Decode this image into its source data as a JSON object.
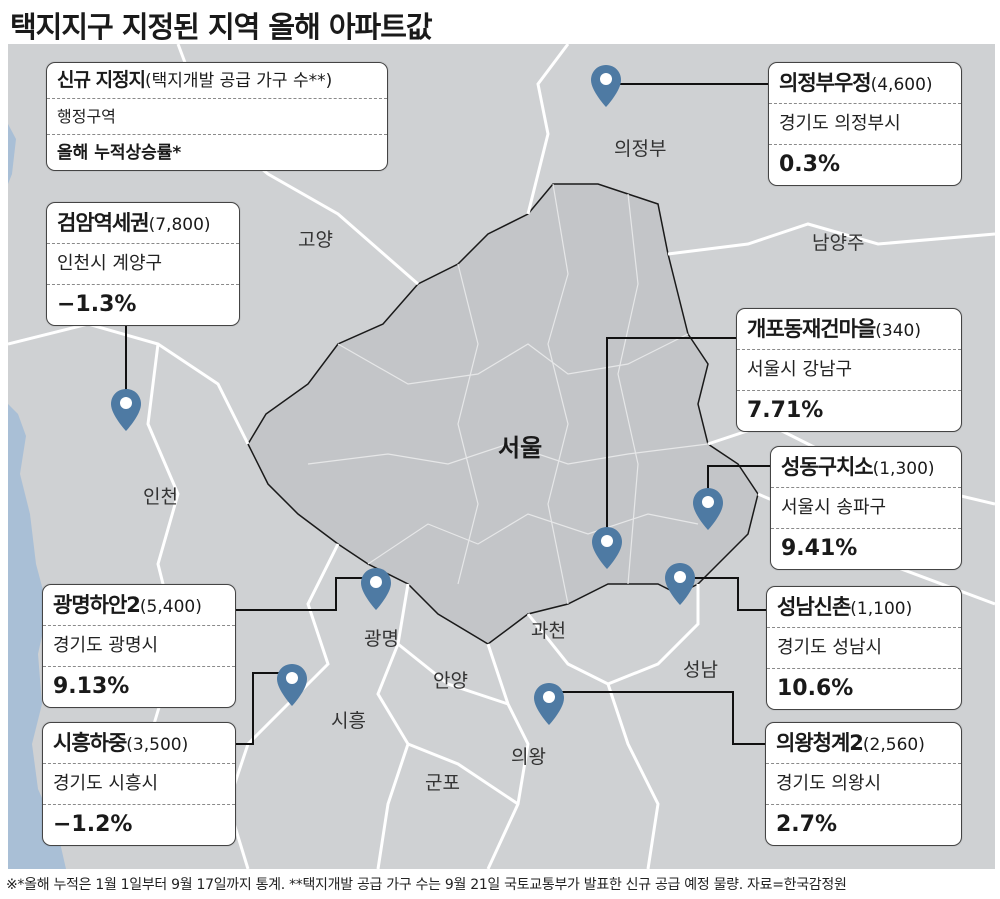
{
  "title": "택지지구 지정된 지역 올해 아파트값",
  "colors": {
    "map_land": "#cfd1d3",
    "seoul_fill": "#c3c5c8",
    "sea": "#a9bfd6",
    "border": "#ffffff",
    "pin": "#4e7aa3",
    "line": "#111111"
  },
  "legend": {
    "name": "신규 지정지",
    "count": "(택지개발 공급 가구 수**)",
    "district": "행정구역",
    "rate": "올해 누적상승률*"
  },
  "regions": {
    "uijeongbu": "의정부",
    "goyang": "고양",
    "namyangju": "남양주",
    "incheon": "인천",
    "seoul": "서울",
    "gwangmyeong": "광명",
    "gwacheon": "과천",
    "seongnam": "성남",
    "anyang": "안양",
    "siheung": "시흥",
    "uiwang": "의왕",
    "gunpo": "군포"
  },
  "sites": [
    {
      "id": "uijeongbu",
      "name": "의정부우정",
      "count": "(4,600)",
      "district": "경기도 의정부시",
      "rate": "0.3%",
      "icon": "map-pin-icon"
    },
    {
      "id": "geomam",
      "name": "검암역세권",
      "count": "(7,800)",
      "district": "인천시 계양구",
      "rate": "−1.3%",
      "icon": "map-pin-icon"
    },
    {
      "id": "gaepo",
      "name": "개포동재건마을",
      "count": "(340)",
      "district": "서울시 강남구",
      "rate": "7.71%",
      "icon": "map-pin-icon"
    },
    {
      "id": "seongdong",
      "name": "성동구치소",
      "count": "(1,300)",
      "district": "서울시 송파구",
      "rate": "9.41%",
      "icon": "map-pin-icon"
    },
    {
      "id": "gwangmyeong",
      "name": "광명하안2",
      "count": "(5,400)",
      "district": "경기도 광명시",
      "rate": "9.13%",
      "icon": "map-pin-icon"
    },
    {
      "id": "seongnam",
      "name": "성남신촌",
      "count": "(1,100)",
      "district": "경기도 성남시",
      "rate": "10.6%",
      "icon": "map-pin-icon"
    },
    {
      "id": "siheung",
      "name": "시흥하중",
      "count": "(3,500)",
      "district": "경기도 시흥시",
      "rate": "−1.2%",
      "icon": "map-pin-icon"
    },
    {
      "id": "uiwang",
      "name": "의왕청계2",
      "count": "(2,560)",
      "district": "경기도 의왕시",
      "rate": "2.7%",
      "icon": "map-pin-icon"
    }
  ],
  "footnote": "※*올해 누적은 1월 1일부터 9월 17일까지 통계. **택지개발 공급 가구 수는 9월 21일 국토교통부가 발표한 신규 공급 예정 물량. 자료=한국감정원"
}
